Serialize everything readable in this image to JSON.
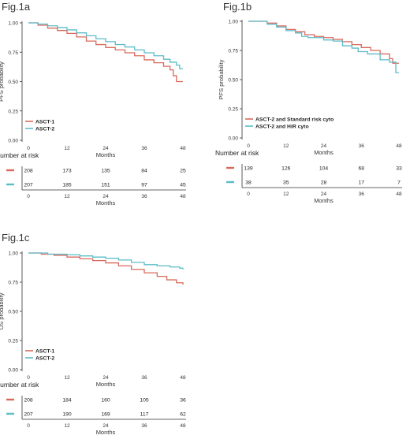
{
  "chart_data": [
    {
      "panel_title": "Fig.1a",
      "type": "line",
      "step": true,
      "xlabel": "Months",
      "ylabel": "PFS probability",
      "xlim": [
        0,
        48
      ],
      "ylim": [
        0,
        1
      ],
      "x_ticks": [
        "0",
        "12",
        "24",
        "36",
        "48"
      ],
      "y_ticks": [
        "0.00",
        "0.25",
        "0.50",
        "0.75",
        "1.00"
      ],
      "legend_position": "bottom-left",
      "series": [
        {
          "name": "ASCT-1",
          "color": "#d9695c",
          "points": [
            [
              0,
              1.0
            ],
            [
              3,
              0.98
            ],
            [
              6,
              0.955
            ],
            [
              9,
              0.935
            ],
            [
              12,
              0.91
            ],
            [
              15,
              0.88
            ],
            [
              18,
              0.845
            ],
            [
              21,
              0.815
            ],
            [
              24,
              0.79
            ],
            [
              27,
              0.77
            ],
            [
              30,
              0.745
            ],
            [
              33,
              0.72
            ],
            [
              36,
              0.685
            ],
            [
              39,
              0.66
            ],
            [
              42,
              0.63
            ],
            [
              44,
              0.6
            ],
            [
              45,
              0.55
            ],
            [
              46,
              0.5
            ],
            [
              48,
              0.5
            ]
          ]
        },
        {
          "name": "ASCT-2",
          "color": "#5bbcc8",
          "points": [
            [
              0,
              1.0
            ],
            [
              3,
              0.99
            ],
            [
              6,
              0.975
            ],
            [
              9,
              0.96
            ],
            [
              12,
              0.94
            ],
            [
              15,
              0.915
            ],
            [
              18,
              0.89
            ],
            [
              21,
              0.865
            ],
            [
              24,
              0.84
            ],
            [
              27,
              0.815
            ],
            [
              30,
              0.795
            ],
            [
              33,
              0.77
            ],
            [
              36,
              0.745
            ],
            [
              39,
              0.72
            ],
            [
              42,
              0.69
            ],
            [
              44,
              0.665
            ],
            [
              46,
              0.64
            ],
            [
              47,
              0.61
            ],
            [
              48,
              0.61
            ]
          ]
        }
      ],
      "risk_table": {
        "title": "Number at risk",
        "xlabel": "Months",
        "rows": [
          {
            "color": "#d9695c",
            "values": [
              "208",
              "173",
              "135",
              "84",
              "25"
            ]
          },
          {
            "color": "#5bbcc8",
            "values": [
              "207",
              "185",
              "151",
              "97",
              "45"
            ]
          }
        ]
      }
    },
    {
      "panel_title": "Fig.1b",
      "type": "line",
      "step": true,
      "xlabel": "Months",
      "ylabel": "PFS probability",
      "xlim": [
        0,
        48
      ],
      "ylim": [
        0,
        1
      ],
      "x_ticks": [
        "0",
        "12",
        "24",
        "36",
        "48"
      ],
      "y_ticks": [
        "0.00",
        "0.25",
        "0.50",
        "0.75",
        "1.00"
      ],
      "legend_position": "bottom-left",
      "series": [
        {
          "name": "ASCT-2 and Standard risk cyto",
          "color": "#d9695c",
          "points": [
            [
              0,
              1.0
            ],
            [
              6,
              0.985
            ],
            [
              9,
              0.96
            ],
            [
              12,
              0.93
            ],
            [
              15,
              0.91
            ],
            [
              18,
              0.885
            ],
            [
              21,
              0.87
            ],
            [
              24,
              0.86
            ],
            [
              27,
              0.845
            ],
            [
              30,
              0.825
            ],
            [
              33,
              0.8
            ],
            [
              36,
              0.775
            ],
            [
              39,
              0.75
            ],
            [
              42,
              0.72
            ],
            [
              45,
              0.68
            ],
            [
              46,
              0.64
            ],
            [
              48,
              0.64
            ]
          ]
        },
        {
          "name": "ASCT-2 and HiR cyto",
          "color": "#5bbcc8",
          "points": [
            [
              0,
              1.0
            ],
            [
              6,
              0.975
            ],
            [
              9,
              0.95
            ],
            [
              12,
              0.92
            ],
            [
              15,
              0.9
            ],
            [
              17,
              0.87
            ],
            [
              19,
              0.86
            ],
            [
              24,
              0.84
            ],
            [
              27,
              0.83
            ],
            [
              30,
              0.79
            ],
            [
              33,
              0.77
            ],
            [
              35,
              0.74
            ],
            [
              38,
              0.72
            ],
            [
              42,
              0.67
            ],
            [
              45,
              0.65
            ],
            [
              47,
              0.56
            ],
            [
              48,
              0.56
            ]
          ]
        }
      ],
      "risk_table": {
        "title": "Number at risk",
        "xlabel": "Months",
        "rows": [
          {
            "color": "#d9695c",
            "values": [
              "139",
              "126",
              "104",
              "68",
              "33"
            ]
          },
          {
            "color": "#5bbcc8",
            "values": [
              "38",
              "35",
              "28",
              "17",
              "7"
            ]
          }
        ]
      }
    },
    {
      "panel_title": "Fig.1c",
      "type": "line",
      "step": true,
      "xlabel": "Months",
      "ylabel": "OS probability",
      "xlim": [
        0,
        48
      ],
      "ylim": [
        0,
        1
      ],
      "x_ticks": [
        "0",
        "12",
        "24",
        "36",
        "48"
      ],
      "y_ticks": [
        "0.00",
        "0.25",
        "0.50",
        "0.75",
        "1.00"
      ],
      "legend_position": "bottom-left",
      "series": [
        {
          "name": "ASCT-1",
          "color": "#d9695c",
          "points": [
            [
              0,
              1.0
            ],
            [
              4,
              0.99
            ],
            [
              8,
              0.98
            ],
            [
              12,
              0.965
            ],
            [
              16,
              0.95
            ],
            [
              20,
              0.935
            ],
            [
              24,
              0.915
            ],
            [
              28,
              0.89
            ],
            [
              32,
              0.86
            ],
            [
              36,
              0.83
            ],
            [
              40,
              0.8
            ],
            [
              43,
              0.77
            ],
            [
              46,
              0.745
            ],
            [
              48,
              0.73
            ]
          ]
        },
        {
          "name": "ASCT-2",
          "color": "#5bbcc8",
          "points": [
            [
              0,
              1.0
            ],
            [
              6,
              0.99
            ],
            [
              12,
              0.985
            ],
            [
              16,
              0.975
            ],
            [
              20,
              0.965
            ],
            [
              24,
              0.955
            ],
            [
              28,
              0.94
            ],
            [
              32,
              0.92
            ],
            [
              36,
              0.9
            ],
            [
              40,
              0.89
            ],
            [
              44,
              0.88
            ],
            [
              47,
              0.87
            ],
            [
              48,
              0.86
            ]
          ]
        }
      ],
      "risk_table": {
        "title": "Number at risk",
        "xlabel": "Months",
        "rows": [
          {
            "color": "#d9695c",
            "values": [
              "208",
              "184",
              "160",
              "105",
              "36"
            ]
          },
          {
            "color": "#5bbcc8",
            "values": [
              "207",
              "190",
              "169",
              "117",
              "62"
            ]
          }
        ]
      }
    }
  ]
}
